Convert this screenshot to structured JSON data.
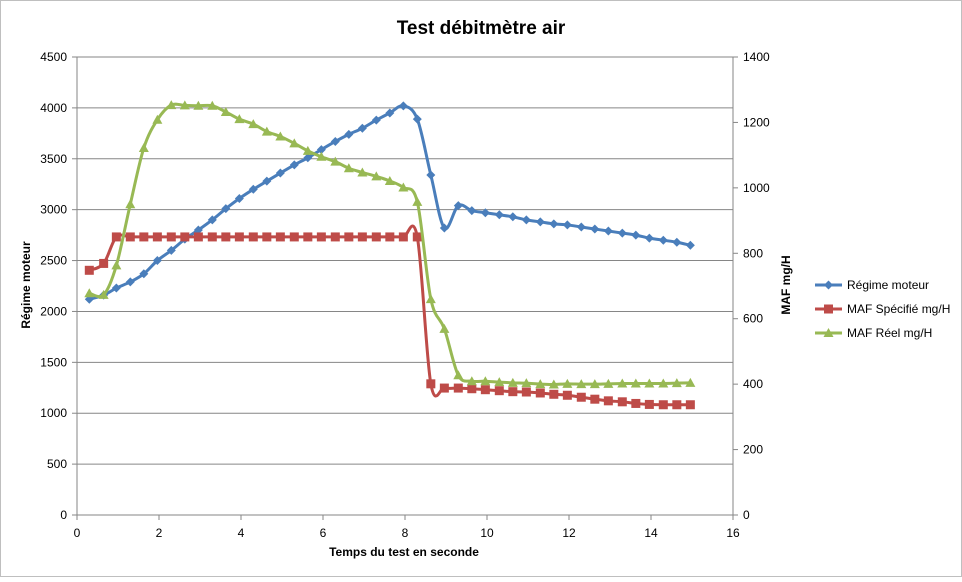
{
  "chart_data": {
    "type": "line",
    "title": "Test débitmètre air",
    "xlabel": "Temps du test en seconde",
    "ylabel_left": "Régime moteur",
    "ylabel_right": "MAF mg/H",
    "xlim": [
      0,
      16
    ],
    "ylim_left": [
      0,
      4500
    ],
    "ylim_right": [
      0,
      1400
    ],
    "x_ticks": [
      "0",
      "2",
      "4",
      "6",
      "8",
      "10",
      "12",
      "14",
      "16"
    ],
    "y_ticks_left": [
      "0",
      "500",
      "1000",
      "1500",
      "2000",
      "2500",
      "3000",
      "3500",
      "4000",
      "4500"
    ],
    "y_ticks_right": [
      "0",
      "200",
      "400",
      "600",
      "800",
      "1000",
      "1200",
      "1400"
    ],
    "grid": true,
    "legend_position": "right",
    "series": [
      {
        "name": "Régime moteur",
        "axis": "left",
        "marker": "diamond",
        "color": "#4a7ebb",
        "x": [
          0.3,
          0.65,
          0.96,
          1.3,
          1.63,
          1.96,
          2.3,
          2.63,
          2.96,
          3.3,
          3.63,
          3.96,
          4.3,
          4.63,
          4.96,
          5.3,
          5.63,
          5.96,
          6.3,
          6.63,
          6.96,
          7.3,
          7.63,
          7.96,
          8.3,
          8.63,
          8.96,
          9.3,
          9.63,
          9.96,
          10.3,
          10.63,
          10.96,
          11.3,
          11.63,
          11.96,
          12.3,
          12.63,
          12.96,
          13.3,
          13.63,
          13.96,
          14.3,
          14.63,
          14.96
        ],
        "values": [
          2120,
          2160,
          2230,
          2290,
          2370,
          2500,
          2600,
          2710,
          2800,
          2900,
          3010,
          3110,
          3200,
          3280,
          3360,
          3440,
          3510,
          3590,
          3670,
          3740,
          3800,
          3880,
          3950,
          4020,
          3890,
          3340,
          2820,
          3040,
          2990,
          2970,
          2950,
          2930,
          2900,
          2880,
          2860,
          2850,
          2830,
          2810,
          2790,
          2770,
          2750,
          2720,
          2700,
          2680,
          2650
        ]
      },
      {
        "name": "MAF Spécifié mg/H",
        "axis": "right",
        "marker": "square",
        "color": "#be4b48",
        "x": [
          0.3,
          0.65,
          0.96,
          1.3,
          1.63,
          1.96,
          2.3,
          2.63,
          2.96,
          3.3,
          3.63,
          3.96,
          4.3,
          4.63,
          4.96,
          5.3,
          5.63,
          5.96,
          6.3,
          6.63,
          6.96,
          7.3,
          7.63,
          7.96,
          8.3,
          8.63,
          8.96,
          9.3,
          9.63,
          9.96,
          10.3,
          10.63,
          10.96,
          11.3,
          11.63,
          11.96,
          12.3,
          12.63,
          12.96,
          13.3,
          13.63,
          13.96,
          14.3,
          14.63,
          14.96
        ],
        "values": [
          748,
          769,
          850,
          850,
          850,
          850,
          850,
          850,
          850,
          850,
          850,
          850,
          850,
          850,
          850,
          850,
          850,
          850,
          850,
          850,
          850,
          850,
          850,
          850,
          850,
          401,
          388,
          388,
          386,
          383,
          380,
          377,
          376,
          373,
          369,
          366,
          360,
          354,
          349,
          346,
          341,
          338,
          337,
          337,
          337
        ]
      },
      {
        "name": "MAF Réel mg/H",
        "axis": "right",
        "marker": "triangle",
        "color": "#98b954",
        "x": [
          0.3,
          0.65,
          0.96,
          1.3,
          1.63,
          1.96,
          2.3,
          2.63,
          2.96,
          3.3,
          3.63,
          3.96,
          4.3,
          4.63,
          4.96,
          5.3,
          5.63,
          5.96,
          6.3,
          6.63,
          6.96,
          7.3,
          7.63,
          7.96,
          8.3,
          8.63,
          8.96,
          9.3,
          9.63,
          9.96,
          10.3,
          10.63,
          10.96,
          11.3,
          11.63,
          11.96,
          12.3,
          12.63,
          12.96,
          13.3,
          13.63,
          13.96,
          14.3,
          14.63,
          14.96
        ],
        "values": [
          678,
          673,
          763,
          950,
          1122,
          1208,
          1253,
          1252,
          1251,
          1251,
          1232,
          1210,
          1195,
          1172,
          1157,
          1136,
          1113,
          1095,
          1080,
          1060,
          1047,
          1035,
          1021,
          1001,
          957,
          660,
          569,
          427,
          409,
          409,
          406,
          404,
          403,
          400,
          399,
          401,
          400,
          400,
          401,
          402,
          402,
          402,
          402,
          403,
          404
        ]
      }
    ]
  }
}
